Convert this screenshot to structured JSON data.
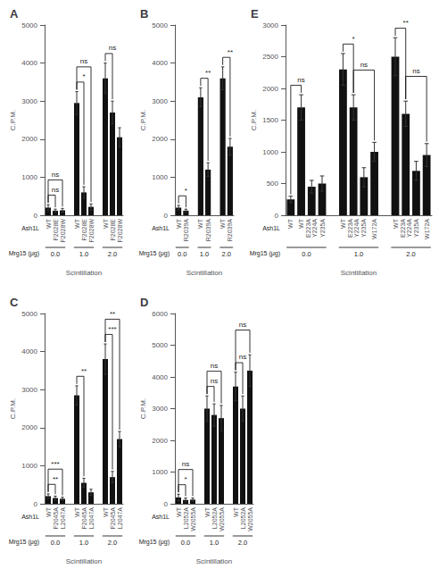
{
  "chart_data": [
    {
      "type": "bar",
      "title": "A",
      "xlabel": "Scintillation",
      "ylabel": "C.P.M.",
      "ylim": [
        0,
        5000
      ],
      "yticks": [
        0,
        1000,
        2000,
        3000,
        4000,
        5000
      ],
      "grid": false,
      "color": "#111111",
      "categories_title": "Ash1L",
      "groups_title": "Mrg15 (μg)",
      "groups": [
        {
          "name": "0.0",
          "categories": [
            "WT",
            "F2028E",
            "F2028W"
          ],
          "values": [
            200,
            120,
            130
          ],
          "errors": [
            80,
            40,
            50
          ],
          "significance": [
            {
              "text": "ns",
              "bars": [
                0,
                1
              ]
            },
            {
              "text": "ns",
              "bars": [
                0,
                2
              ]
            }
          ]
        },
        {
          "name": "1.0",
          "categories": [
            "WT",
            "F2028E",
            "F2028W"
          ],
          "values": [
            2950,
            600,
            220
          ],
          "errors": [
            300,
            150,
            80
          ],
          "significance": [
            {
              "text": "*",
              "bars": [
                0,
                1
              ]
            },
            {
              "text": "ns",
              "bars": [
                0,
                2
              ]
            }
          ]
        },
        {
          "name": "2.0",
          "categories": [
            "WT",
            "F2028E",
            "F2028W"
          ],
          "values": [
            3600,
            2700,
            2050
          ],
          "errors": [
            400,
            300,
            250
          ],
          "significance": [
            {
              "text": "ns",
              "bars": [
                0,
                1
              ]
            }
          ]
        }
      ]
    },
    {
      "type": "bar",
      "title": "B",
      "xlabel": "Scintillation",
      "ylabel": "C.P.M.",
      "ylim": [
        0,
        5000
      ],
      "yticks": [
        0,
        1000,
        2000,
        3000,
        4000,
        5000
      ],
      "grid": false,
      "color": "#111111",
      "categories_title": "Ash1L",
      "groups_title": "Mrg15 (μg)",
      "groups": [
        {
          "name": "0.0",
          "categories": [
            "WT",
            "R2039A"
          ],
          "values": [
            200,
            120
          ],
          "errors": [
            60,
            40
          ],
          "significance": [
            {
              "text": "*",
              "bars": [
                0,
                1
              ]
            }
          ]
        },
        {
          "name": "1.0",
          "categories": [
            "WT",
            "R2039A"
          ],
          "values": [
            3100,
            1200
          ],
          "errors": [
            250,
            180
          ],
          "significance": [
            {
              "text": "**",
              "bars": [
                0,
                1
              ]
            }
          ]
        },
        {
          "name": "2.0",
          "categories": [
            "WT",
            "R2039A"
          ],
          "values": [
            3600,
            1800
          ],
          "errors": [
            300,
            220
          ],
          "significance": [
            {
              "text": "**",
              "bars": [
                0,
                1
              ]
            }
          ]
        }
      ]
    },
    {
      "type": "bar",
      "title": "E",
      "xlabel": "Scintillation",
      "ylabel": "C.P.M.",
      "ylim": [
        0,
        3000
      ],
      "yticks": [
        0,
        500,
        1000,
        1500,
        2000,
        2500,
        3000
      ],
      "grid": false,
      "color": "#111111",
      "categories_title": "Ash1L",
      "groups_title": "Mrg15 (μg)",
      "groups": [
        {
          "name": "0.0",
          "categories": [
            "WT",
            "WT",
            "E223A\nY224A",
            "Y235A"
          ],
          "values": [
            250,
            1700,
            450,
            500
          ],
          "errors": [
            50,
            200,
            100,
            120
          ],
          "significance": [
            {
              "text": "ns",
              "bars": [
                0,
                1
              ]
            }
          ]
        },
        {
          "name": "1.0",
          "categories": [
            "WT",
            "E223A\nY224A",
            "Y235A",
            "W172A"
          ],
          "values": [
            2300,
            1700,
            600,
            1000
          ],
          "errors": [
            250,
            200,
            150,
            150
          ],
          "significance": [
            {
              "text": "*",
              "bars": [
                0,
                1
              ]
            },
            {
              "text": "ns",
              "bars": [
                1,
                3
              ]
            }
          ]
        },
        {
          "name": "2.0",
          "categories": [
            "WT",
            "E223A\nY224A",
            "Y235A",
            "W172A"
          ],
          "values": [
            2500,
            1600,
            700,
            950
          ],
          "errors": [
            300,
            200,
            150,
            180
          ],
          "significance": [
            {
              "text": "**",
              "bars": [
                0,
                1
              ]
            },
            {
              "text": "ns",
              "bars": [
                1,
                3
              ]
            }
          ]
        }
      ]
    },
    {
      "type": "bar",
      "title": "C",
      "xlabel": "Scintillation",
      "ylabel": "C.P.M.",
      "ylim": [
        0,
        5000
      ],
      "yticks": [
        0,
        1000,
        2000,
        3000,
        4000,
        5000
      ],
      "grid": false,
      "color": "#111111",
      "categories_title": "Ash1L",
      "groups_title": "Mrg15 (μg)",
      "groups": [
        {
          "name": "0.0",
          "categories": [
            "WT",
            "F2045A",
            "L2047A"
          ],
          "values": [
            200,
            150,
            130
          ],
          "errors": [
            60,
            50,
            40
          ],
          "significance": [
            {
              "text": "**",
              "bars": [
                0,
                1
              ]
            },
            {
              "text": "***",
              "bars": [
                0,
                2
              ]
            }
          ]
        },
        {
          "name": "1.0",
          "categories": [
            "WT",
            "F2045A",
            "L2047A"
          ],
          "values": [
            2850,
            550,
            300
          ],
          "errors": [
            250,
            120,
            80
          ],
          "significance": [
            {
              "text": "**",
              "bars": [
                0,
                1
              ]
            }
          ]
        },
        {
          "name": "2.0",
          "categories": [
            "WT",
            "F2045A",
            "L2047A"
          ],
          "values": [
            3800,
            700,
            1700
          ],
          "errors": [
            400,
            150,
            200
          ],
          "significance": [
            {
              "text": "***",
              "bars": [
                0,
                1
              ]
            },
            {
              "text": "**",
              "bars": [
                0,
                2
              ]
            }
          ]
        }
      ]
    },
    {
      "type": "bar",
      "title": "D",
      "xlabel": "Scintillation",
      "ylabel": "C.P.M.",
      "ylim": [
        0,
        6000
      ],
      "yticks": [
        0,
        1000,
        2000,
        3000,
        4000,
        5000,
        6000
      ],
      "grid": false,
      "color": "#111111",
      "categories_title": "Ash1L",
      "groups_title": "Mrg15 (μg)",
      "groups": [
        {
          "name": "0.0",
          "categories": [
            "WT",
            "L2052A",
            "W2055A"
          ],
          "values": [
            200,
            120,
            130
          ],
          "errors": [
            100,
            60,
            50
          ],
          "significance": [
            {
              "text": "*",
              "bars": [
                0,
                1
              ]
            },
            {
              "text": "ns",
              "bars": [
                0,
                2
              ]
            }
          ]
        },
        {
          "name": "1.0",
          "categories": [
            "WT",
            "L2052A",
            "W2055A"
          ],
          "values": [
            3000,
            2800,
            2700
          ],
          "errors": [
            400,
            350,
            400
          ],
          "significance": [
            {
              "text": "ns",
              "bars": [
                0,
                1
              ]
            },
            {
              "text": "ns",
              "bars": [
                0,
                2
              ]
            }
          ]
        },
        {
          "name": "2.0",
          "categories": [
            "WT",
            "L2052A",
            "W2055A"
          ],
          "values": [
            3700,
            3000,
            4200
          ],
          "errors": [
            450,
            400,
            500
          ],
          "significance": [
            {
              "text": "ns",
              "bars": [
                0,
                1
              ]
            },
            {
              "text": "ns",
              "bars": [
                0,
                2
              ]
            }
          ]
        }
      ]
    }
  ]
}
